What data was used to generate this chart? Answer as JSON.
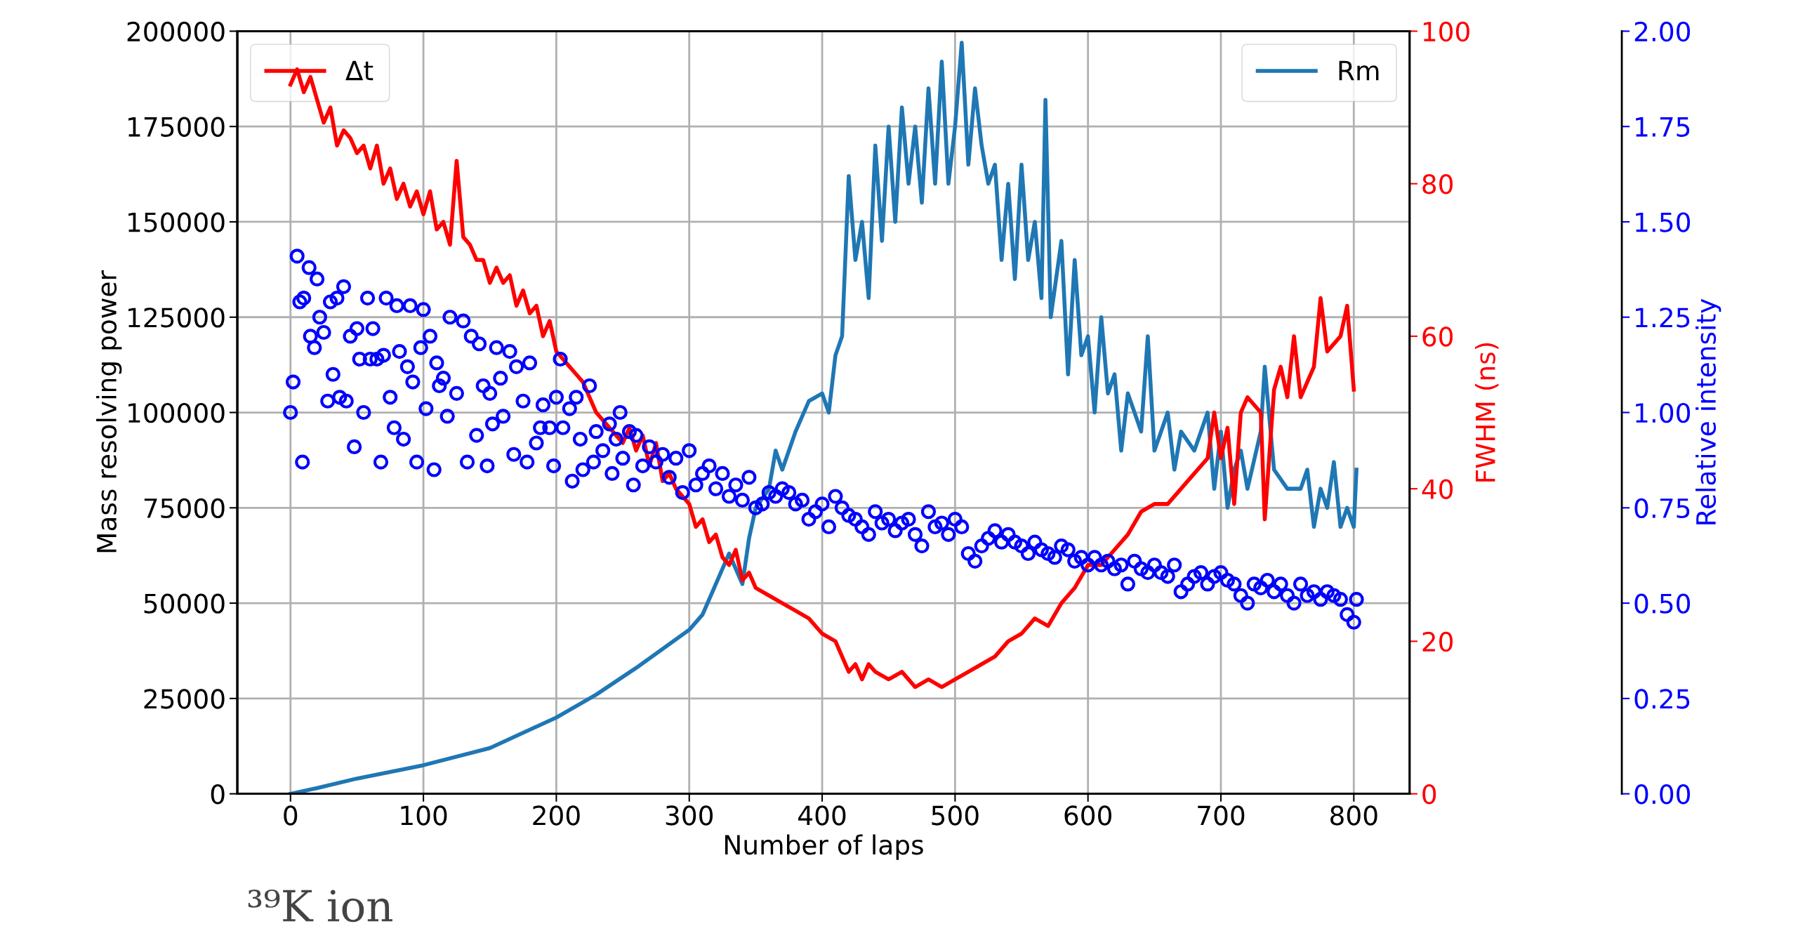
{
  "chart_data": {
    "type": "line",
    "xlabel": "Number of laps",
    "ylabel": "Mass resolving power",
    "y2label": "FWHM (ns)",
    "y3label": "Relative intensity",
    "xlim": [
      -40,
      842
    ],
    "xticks": [
      0,
      100,
      200,
      300,
      400,
      500,
      600,
      700,
      800
    ],
    "ylim": [
      0,
      200000
    ],
    "yticks": [
      0,
      25000,
      50000,
      75000,
      100000,
      125000,
      150000,
      175000,
      200000
    ],
    "y2lim": [
      0,
      100
    ],
    "y2ticks": [
      0,
      20,
      40,
      60,
      80,
      100
    ],
    "y3lim": [
      0,
      2
    ],
    "y3ticks": [
      {
        "value": 0,
        "label": "0.00"
      },
      {
        "value": 0.25,
        "label": "0.25"
      },
      {
        "value": 0.5,
        "label": "0.50"
      },
      {
        "value": 0.75,
        "label": "0.75"
      },
      {
        "value": 1,
        "label": "1.00"
      },
      {
        "value": 1.25,
        "label": "1.25"
      },
      {
        "value": 1.5,
        "label": "1.50"
      },
      {
        "value": 1.75,
        "label": "1.75"
      },
      {
        "value": 2,
        "label": "2.00"
      }
    ],
    "grid": true,
    "legend": "top",
    "annotations": [
      "³⁹K ion"
    ],
    "series": [
      {
        "name": "Rm",
        "axis": "y",
        "color": "#1f77b4",
        "x": [
          0,
          20,
          50,
          100,
          150,
          200,
          230,
          260,
          280,
          300,
          310,
          320,
          330,
          340,
          345,
          350,
          360,
          365,
          370,
          380,
          390,
          400,
          405,
          410,
          415,
          420,
          425,
          430,
          435,
          440,
          445,
          450,
          455,
          460,
          465,
          470,
          475,
          480,
          485,
          490,
          495,
          500,
          505,
          510,
          515,
          520,
          525,
          530,
          535,
          540,
          545,
          550,
          555,
          560,
          565,
          568,
          572,
          580,
          585,
          590,
          595,
          600,
          605,
          610,
          615,
          620,
          625,
          630,
          640,
          645,
          650,
          660,
          665,
          670,
          680,
          690,
          695,
          700,
          705,
          710,
          715,
          720,
          730,
          733,
          740,
          750,
          760,
          765,
          770,
          775,
          780,
          785,
          790,
          795,
          800,
          802
        ],
        "values": [
          0,
          1500,
          4000,
          7500,
          12000,
          20000,
          26000,
          33000,
          38000,
          43000,
          47000,
          55000,
          63000,
          55000,
          67000,
          75000,
          80000,
          90000,
          85000,
          95000,
          103000,
          105000,
          100000,
          115000,
          120000,
          162000,
          140000,
          150000,
          130000,
          170000,
          145000,
          175000,
          150000,
          180000,
          160000,
          175000,
          155000,
          185000,
          160000,
          192000,
          160000,
          175000,
          197000,
          165000,
          185000,
          170000,
          160000,
          165000,
          140000,
          160000,
          135000,
          165000,
          140000,
          150000,
          130000,
          182000,
          125000,
          145000,
          110000,
          140000,
          115000,
          120000,
          100000,
          125000,
          105000,
          110000,
          90000,
          105000,
          95000,
          120000,
          90000,
          100000,
          85000,
          95000,
          90000,
          100000,
          80000,
          95000,
          75000,
          85000,
          90000,
          80000,
          95000,
          112000,
          85000,
          80000,
          80000,
          85000,
          70000,
          80000,
          75000,
          87000,
          70000,
          75000,
          70000,
          85000
        ]
      },
      {
        "name": "Δt",
        "axis": "y2",
        "color": "#ff0000",
        "x": [
          0,
          5,
          10,
          15,
          20,
          25,
          30,
          35,
          40,
          45,
          50,
          55,
          60,
          65,
          70,
          75,
          80,
          85,
          90,
          95,
          100,
          105,
          110,
          115,
          120,
          125,
          130,
          135,
          140,
          145,
          150,
          155,
          160,
          165,
          170,
          175,
          180,
          185,
          190,
          195,
          200,
          205,
          210,
          215,
          220,
          225,
          230,
          235,
          240,
          245,
          250,
          255,
          260,
          265,
          270,
          275,
          280,
          285,
          290,
          295,
          300,
          305,
          310,
          315,
          320,
          325,
          330,
          335,
          340,
          345,
          350,
          360,
          370,
          380,
          390,
          400,
          410,
          415,
          420,
          425,
          430,
          435,
          440,
          450,
          460,
          470,
          480,
          490,
          500,
          510,
          520,
          530,
          540,
          550,
          560,
          570,
          580,
          590,
          600,
          610,
          620,
          630,
          640,
          650,
          660,
          670,
          680,
          690,
          695,
          700,
          705,
          710,
          715,
          720,
          730,
          733,
          740,
          745,
          750,
          755,
          760,
          770,
          775,
          780,
          790,
          795,
          800
        ],
        "values": [
          93,
          95,
          92,
          94,
          91,
          88,
          90,
          85,
          87,
          86,
          84,
          85,
          82,
          85,
          80,
          82,
          78,
          80,
          77,
          79,
          76,
          79,
          74,
          75,
          72,
          83,
          73,
          72,
          70,
          70,
          67,
          69,
          67,
          68,
          64,
          66,
          63,
          64,
          60,
          62,
          58,
          57,
          56,
          55,
          54,
          52,
          50,
          49,
          48,
          47,
          46,
          48,
          45,
          47,
          43,
          46,
          41,
          42,
          40,
          39,
          38,
          35,
          36,
          33,
          34,
          31,
          30,
          32,
          28,
          29,
          27,
          26,
          25,
          24,
          23,
          21,
          20,
          18,
          16,
          17,
          15,
          17,
          16,
          15,
          16,
          14,
          15,
          14,
          15,
          16,
          17,
          18,
          20,
          21,
          23,
          22,
          25,
          27,
          30,
          30,
          32,
          34,
          37,
          38,
          38,
          40,
          42,
          44,
          50,
          44,
          48,
          38,
          50,
          52,
          50,
          36,
          53,
          56,
          52,
          60,
          52,
          56,
          65,
          58,
          60,
          64,
          53
        ]
      },
      {
        "type": "scatter",
        "axis": "y3",
        "color": "#0000ff",
        "marker": "circle",
        "x": [
          0,
          2,
          5,
          7,
          9,
          10,
          14,
          15,
          18,
          20,
          22,
          25,
          28,
          30,
          32,
          35,
          37,
          40,
          42,
          45,
          48,
          50,
          52,
          55,
          58,
          60,
          62,
          65,
          68,
          70,
          72,
          75,
          78,
          80,
          82,
          85,
          88,
          90,
          92,
          95,
          98,
          100,
          102,
          105,
          108,
          110,
          112,
          115,
          118,
          120,
          125,
          130,
          133,
          136,
          140,
          142,
          145,
          148,
          150,
          152,
          155,
          158,
          160,
          165,
          168,
          170,
          175,
          178,
          180,
          185,
          188,
          190,
          195,
          198,
          200,
          203,
          205,
          210,
          212,
          215,
          218,
          220,
          225,
          228,
          230,
          235,
          240,
          242,
          245,
          248,
          250,
          255,
          258,
          260,
          265,
          270,
          275,
          280,
          285,
          290,
          295,
          300,
          305,
          310,
          315,
          320,
          325,
          330,
          335,
          340,
          345,
          350,
          355,
          360,
          365,
          370,
          375,
          380,
          385,
          390,
          395,
          400,
          405,
          410,
          415,
          420,
          425,
          430,
          435,
          440,
          445,
          450,
          455,
          460,
          465,
          470,
          475,
          480,
          485,
          490,
          495,
          500,
          505,
          510,
          515,
          520,
          525,
          530,
          535,
          540,
          545,
          550,
          555,
          560,
          565,
          570,
          575,
          580,
          585,
          590,
          595,
          600,
          605,
          610,
          615,
          620,
          625,
          630,
          635,
          640,
          645,
          650,
          655,
          660,
          665,
          670,
          675,
          680,
          685,
          690,
          695,
          700,
          705,
          710,
          715,
          720,
          725,
          730,
          735,
          740,
          745,
          750,
          755,
          760,
          765,
          770,
          775,
          780,
          785,
          790,
          795,
          800,
          802
        ],
        "values": [
          1.0,
          1.08,
          1.41,
          1.29,
          0.87,
          1.3,
          1.38,
          1.2,
          1.17,
          1.35,
          1.25,
          1.21,
          1.03,
          1.29,
          1.1,
          1.3,
          1.04,
          1.33,
          1.03,
          1.2,
          0.91,
          1.22,
          1.14,
          1.0,
          1.3,
          1.14,
          1.22,
          1.14,
          0.87,
          1.15,
          1.3,
          1.04,
          0.96,
          1.28,
          1.16,
          0.93,
          1.12,
          1.28,
          1.08,
          0.87,
          1.17,
          1.27,
          1.01,
          1.2,
          0.85,
          1.13,
          1.07,
          1.09,
          0.99,
          1.25,
          1.05,
          1.24,
          0.87,
          1.2,
          0.94,
          1.18,
          1.07,
          0.86,
          1.05,
          0.97,
          1.17,
          1.09,
          0.99,
          1.16,
          0.89,
          1.12,
          1.03,
          0.87,
          1.13,
          0.92,
          0.96,
          1.02,
          0.96,
          0.86,
          1.04,
          1.14,
          0.96,
          1.01,
          0.82,
          1.04,
          0.93,
          0.85,
          1.07,
          0.87,
          0.95,
          0.9,
          0.97,
          0.84,
          0.93,
          1.0,
          0.88,
          0.95,
          0.81,
          0.94,
          0.86,
          0.91,
          0.87,
          0.89,
          0.83,
          0.88,
          0.79,
          0.9,
          0.81,
          0.84,
          0.86,
          0.8,
          0.84,
          0.78,
          0.81,
          0.77,
          0.83,
          0.75,
          0.76,
          0.79,
          0.78,
          0.8,
          0.79,
          0.76,
          0.77,
          0.72,
          0.74,
          0.76,
          0.7,
          0.78,
          0.75,
          0.73,
          0.72,
          0.7,
          0.68,
          0.74,
          0.71,
          0.72,
          0.69,
          0.71,
          0.72,
          0.68,
          0.65,
          0.74,
          0.7,
          0.71,
          0.68,
          0.72,
          0.7,
          0.63,
          0.61,
          0.65,
          0.67,
          0.69,
          0.66,
          0.68,
          0.66,
          0.65,
          0.63,
          0.66,
          0.64,
          0.63,
          0.62,
          0.65,
          0.64,
          0.61,
          0.62,
          0.6,
          0.62,
          0.6,
          0.61,
          0.59,
          0.6,
          0.55,
          0.61,
          0.59,
          0.58,
          0.6,
          0.58,
          0.57,
          0.6,
          0.53,
          0.55,
          0.57,
          0.58,
          0.55,
          0.57,
          0.58,
          0.56,
          0.55,
          0.52,
          0.5,
          0.55,
          0.54,
          0.56,
          0.53,
          0.55,
          0.52,
          0.5,
          0.55,
          0.52,
          0.53,
          0.51,
          0.53,
          0.52,
          0.51,
          0.47,
          0.45,
          0.51
        ]
      }
    ]
  }
}
